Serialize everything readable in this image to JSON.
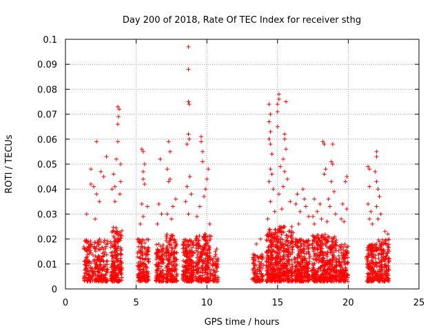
{
  "chart_data": {
    "type": "scatter",
    "title": "Day 200 of 2018, Rate Of TEC Index for receiver sthg",
    "xlabel": "GPS time / hours",
    "ylabel": "ROTI / TECUs",
    "xlim": [
      0,
      25
    ],
    "ylim": [
      0,
      0.1
    ],
    "xticks": [
      0,
      5,
      10,
      15,
      20,
      25
    ],
    "xtick_labels": [
      "0",
      "5",
      "10",
      "15",
      "20",
      "25"
    ],
    "yticks": [
      0,
      0.01,
      0.02,
      0.03,
      0.04,
      0.05,
      0.06,
      0.07,
      0.08,
      0.09,
      0.1
    ],
    "ytick_labels": [
      "0",
      "0.01",
      "0.02",
      "0.03",
      "0.04",
      "0.05",
      "0.06",
      "0.07",
      "0.08",
      "0.09",
      "0.1"
    ],
    "grid": true,
    "marker": "+",
    "color": "#ff0000",
    "series": [
      {
        "name": "ROTI",
        "clusters": [
          {
            "x_start": 1.3,
            "x_end": 3.0,
            "count": 260,
            "base_max": 0.02,
            "outliers": [
              [
                2.2,
                0.059
              ],
              [
                1.8,
                0.048
              ],
              [
                1.8,
                0.042
              ],
              [
                2.0,
                0.041
              ],
              [
                2.2,
                0.038
              ],
              [
                2.5,
                0.047
              ],
              [
                2.7,
                0.045
              ],
              [
                2.9,
                0.053
              ],
              [
                1.5,
                0.03
              ],
              [
                2.4,
                0.035
              ],
              [
                2.1,
                0.028
              ]
            ]
          },
          {
            "x_start": 3.2,
            "x_end": 4.0,
            "count": 200,
            "base_max": 0.025,
            "outliers": [
              [
                3.7,
                0.073
              ],
              [
                3.8,
                0.072
              ],
              [
                3.75,
                0.069
              ],
              [
                3.7,
                0.066
              ],
              [
                3.7,
                0.059
              ],
              [
                3.6,
                0.052
              ],
              [
                3.9,
                0.05
              ],
              [
                3.4,
                0.046
              ],
              [
                3.3,
                0.04
              ],
              [
                3.5,
                0.041
              ],
              [
                3.9,
                0.043
              ],
              [
                3.5,
                0.035
              ],
              [
                3.85,
                0.038
              ]
            ]
          },
          {
            "x_start": 5.1,
            "x_end": 5.9,
            "count": 150,
            "base_max": 0.02,
            "outliers": [
              [
                5.4,
                0.056
              ],
              [
                5.5,
                0.055
              ],
              [
                5.6,
                0.05
              ],
              [
                5.5,
                0.047
              ],
              [
                5.5,
                0.044
              ],
              [
                5.6,
                0.042
              ],
              [
                5.4,
                0.034
              ],
              [
                5.8,
                0.033
              ],
              [
                5.3,
                0.026
              ],
              [
                5.5,
                0.029
              ]
            ]
          },
          {
            "x_start": 6.4,
            "x_end": 7.0,
            "count": 110,
            "base_max": 0.018,
            "outliers": [
              [
                6.7,
                0.052
              ],
              [
                6.6,
                0.034
              ],
              [
                6.8,
                0.03
              ],
              [
                6.5,
                0.026
              ]
            ]
          },
          {
            "x_start": 7.1,
            "x_end": 7.9,
            "count": 170,
            "base_max": 0.022,
            "outliers": [
              [
                7.3,
                0.059
              ],
              [
                7.4,
                0.055
              ],
              [
                7.2,
                0.048
              ],
              [
                7.4,
                0.044
              ],
              [
                7.3,
                0.043
              ],
              [
                7.8,
                0.036
              ],
              [
                7.6,
                0.033
              ],
              [
                7.5,
                0.028
              ],
              [
                7.2,
                0.03
              ]
            ]
          },
          {
            "x_start": 8.3,
            "x_end": 9.1,
            "count": 190,
            "base_max": 0.02,
            "outliers": [
              [
                8.7,
                0.097
              ],
              [
                8.7,
                0.088
              ],
              [
                8.7,
                0.075
              ],
              [
                8.75,
                0.074
              ],
              [
                8.7,
                0.062
              ],
              [
                8.75,
                0.06
              ],
              [
                8.6,
                0.058
              ],
              [
                8.8,
                0.045
              ],
              [
                8.6,
                0.041
              ],
              [
                8.9,
                0.038
              ],
              [
                8.5,
                0.035
              ],
              [
                8.7,
                0.03
              ]
            ]
          },
          {
            "x_start": 9.2,
            "x_end": 10.3,
            "count": 220,
            "base_max": 0.022,
            "outliers": [
              [
                9.6,
                0.061
              ],
              [
                9.6,
                0.059
              ],
              [
                9.7,
                0.055
              ],
              [
                9.7,
                0.051
              ],
              [
                10.1,
                0.048
              ],
              [
                10.0,
                0.044
              ],
              [
                9.9,
                0.04
              ],
              [
                9.8,
                0.037
              ],
              [
                9.5,
                0.033
              ],
              [
                9.3,
                0.029
              ],
              [
                10.2,
                0.026
              ]
            ]
          },
          {
            "x_start": 10.4,
            "x_end": 10.8,
            "count": 50,
            "base_max": 0.014,
            "outliers": [
              [
                10.7,
                0.016
              ],
              [
                10.6,
                0.015
              ]
            ]
          },
          {
            "x_start": 13.2,
            "x_end": 14.0,
            "count": 90,
            "base_max": 0.014,
            "outliers": [
              [
                13.5,
                0.018
              ],
              [
                13.8,
                0.02
              ]
            ]
          },
          {
            "x_start": 14.2,
            "x_end": 15.0,
            "count": 230,
            "base_max": 0.024,
            "outliers": [
              [
                14.4,
                0.074
              ],
              [
                14.5,
                0.07
              ],
              [
                14.4,
                0.067
              ],
              [
                14.5,
                0.063
              ],
              [
                14.4,
                0.06
              ],
              [
                14.5,
                0.058
              ],
              [
                14.6,
                0.054
              ],
              [
                14.5,
                0.048
              ],
              [
                14.6,
                0.046
              ],
              [
                14.4,
                0.043
              ],
              [
                14.7,
                0.04
              ],
              [
                14.5,
                0.035
              ],
              [
                14.8,
                0.031
              ],
              [
                14.3,
                0.028
              ]
            ]
          },
          {
            "x_start": 15.0,
            "x_end": 16.1,
            "count": 260,
            "base_max": 0.025,
            "outliers": [
              [
                15.1,
                0.078
              ],
              [
                15.1,
                0.076
              ],
              [
                15.0,
                0.074
              ],
              [
                15.6,
                0.075
              ],
              [
                15.0,
                0.071
              ],
              [
                15.0,
                0.065
              ],
              [
                15.5,
                0.062
              ],
              [
                15.5,
                0.06
              ],
              [
                15.6,
                0.056
              ],
              [
                15.4,
                0.052
              ],
              [
                15.2,
                0.049
              ],
              [
                15.5,
                0.047
              ],
              [
                15.7,
                0.044
              ],
              [
                15.4,
                0.041
              ],
              [
                15.1,
                0.038
              ],
              [
                15.9,
                0.035
              ],
              [
                15.3,
                0.032
              ]
            ]
          },
          {
            "x_start": 16.2,
            "x_end": 17.3,
            "count": 220,
            "base_max": 0.02,
            "outliers": [
              [
                16.8,
                0.04
              ],
              [
                16.4,
                0.038
              ],
              [
                16.9,
                0.036
              ],
              [
                16.3,
                0.034
              ],
              [
                17.0,
                0.033
              ],
              [
                16.6,
                0.031
              ],
              [
                17.2,
                0.029
              ],
              [
                16.5,
                0.026
              ]
            ]
          },
          {
            "x_start": 17.4,
            "x_end": 18.4,
            "count": 220,
            "base_max": 0.022,
            "outliers": [
              [
                18.2,
                0.059
              ],
              [
                18.3,
                0.058
              ],
              [
                18.4,
                0.048
              ],
              [
                18.3,
                0.046
              ],
              [
                17.6,
                0.036
              ],
              [
                18.0,
                0.034
              ],
              [
                17.8,
                0.031
              ],
              [
                17.5,
                0.029
              ],
              [
                18.1,
                0.028
              ],
              [
                17.6,
                0.026
              ]
            ]
          },
          {
            "x_start": 18.4,
            "x_end": 19.2,
            "count": 170,
            "base_max": 0.021,
            "outliers": [
              [
                18.9,
                0.058
              ],
              [
                18.8,
                0.051
              ],
              [
                18.9,
                0.05
              ],
              [
                18.8,
                0.043
              ],
              [
                19.0,
                0.039
              ],
              [
                18.6,
                0.036
              ],
              [
                18.7,
                0.033
              ],
              [
                19.1,
                0.03
              ],
              [
                18.5,
                0.027
              ]
            ]
          },
          {
            "x_start": 19.3,
            "x_end": 20.0,
            "count": 120,
            "base_max": 0.018,
            "outliers": [
              [
                19.9,
                0.045
              ],
              [
                19.8,
                0.043
              ],
              [
                19.6,
                0.034
              ],
              [
                19.9,
                0.032
              ],
              [
                19.5,
                0.028
              ],
              [
                19.7,
                0.027
              ]
            ]
          },
          {
            "x_start": 21.3,
            "x_end": 21.9,
            "count": 130,
            "base_max": 0.018,
            "outliers": [
              [
                21.4,
                0.049
              ],
              [
                21.5,
                0.048
              ],
              [
                21.5,
                0.041
              ],
              [
                21.4,
                0.034
              ],
              [
                21.6,
                0.031
              ],
              [
                21.5,
                0.028
              ],
              [
                21.7,
                0.026
              ]
            ]
          },
          {
            "x_start": 21.9,
            "x_end": 22.9,
            "count": 170,
            "base_max": 0.02,
            "outliers": [
              [
                22.0,
                0.055
              ],
              [
                22.0,
                0.053
              ],
              [
                21.9,
                0.047
              ],
              [
                22.0,
                0.043
              ],
              [
                22.1,
                0.04
              ],
              [
                22.2,
                0.037
              ],
              [
                22.0,
                0.033
              ],
              [
                22.3,
                0.03
              ],
              [
                22.1,
                0.028
              ],
              [
                22.6,
                0.023
              ],
              [
                22.8,
                0.022
              ]
            ]
          }
        ]
      }
    ]
  }
}
